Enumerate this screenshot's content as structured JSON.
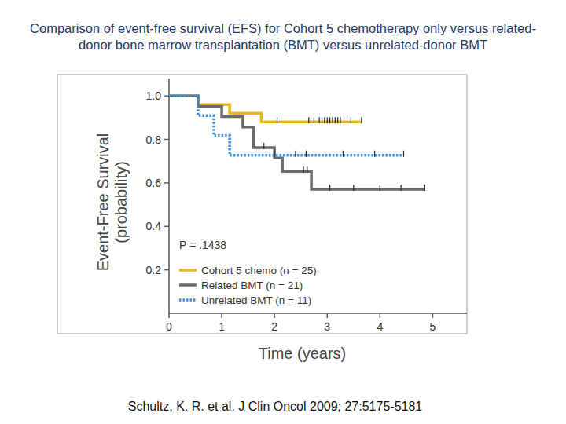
{
  "chart_data": {
    "type": "step",
    "title": "Comparison of event-free survival (EFS) for Cohort 5 chemotherapy only versus related-donor bone marrow transplantation (BMT) versus unrelated-donor BMT",
    "xlabel": "Time (years)",
    "ylabel": "Event-Free Survival (probability)",
    "annotation": "P = .1438",
    "source": "Schultz, K. R. et al. J Clin Oncol 2009; 27:5175-5181",
    "xlim": [
      0,
      5.65
    ],
    "ylim": [
      0,
      1.08
    ],
    "xticks": [
      0,
      1,
      2,
      3,
      4,
      5
    ],
    "yticks": [
      {
        "value": 0.2,
        "label": "0.2"
      },
      {
        "value": 0.4,
        "label": "0.4"
      },
      {
        "value": 0.6,
        "label": "0.6"
      },
      {
        "value": 0.8,
        "label": "0.8"
      },
      {
        "value": 1.0,
        "label": "1.0"
      }
    ],
    "grid": false,
    "legend": "lower left",
    "series": [
      {
        "name": "Cohort 5 chemo (n = 25)",
        "color": "#e9b820",
        "line_style": "solid",
        "x": [
          0,
          0.55,
          1.15,
          1.75,
          3.65
        ],
        "values": [
          1.0,
          0.96,
          0.92,
          0.88,
          0.88
        ],
        "censored": [
          2.05,
          2.65,
          2.75,
          2.85,
          2.9,
          2.95,
          3.0,
          3.05,
          3.1,
          3.15,
          3.2,
          3.25,
          3.45,
          3.65
        ]
      },
      {
        "name": "Related BMT (n = 21)",
        "color": "#6b6b6b",
        "line_style": "solid",
        "x": [
          0,
          0.55,
          1.0,
          1.4,
          1.6,
          2.0,
          2.15,
          2.7,
          4.85
        ],
        "values": [
          1.0,
          0.952,
          0.905,
          0.857,
          0.762,
          0.714,
          0.653,
          0.571,
          0.571
        ],
        "censored": [
          1.8,
          2.55,
          2.62,
          3.05,
          3.5,
          4.0,
          4.4,
          4.85
        ]
      },
      {
        "name": "Unrelated BMT (n = 11)",
        "color": "#3d8fd6",
        "line_style": "dotted",
        "x": [
          0,
          0.55,
          0.85,
          1.15,
          4.45
        ],
        "values": [
          1.0,
          0.909,
          0.818,
          0.727,
          0.727
        ],
        "censored": [
          2.0,
          2.4,
          2.6,
          3.3,
          3.9,
          4.45
        ]
      }
    ]
  }
}
